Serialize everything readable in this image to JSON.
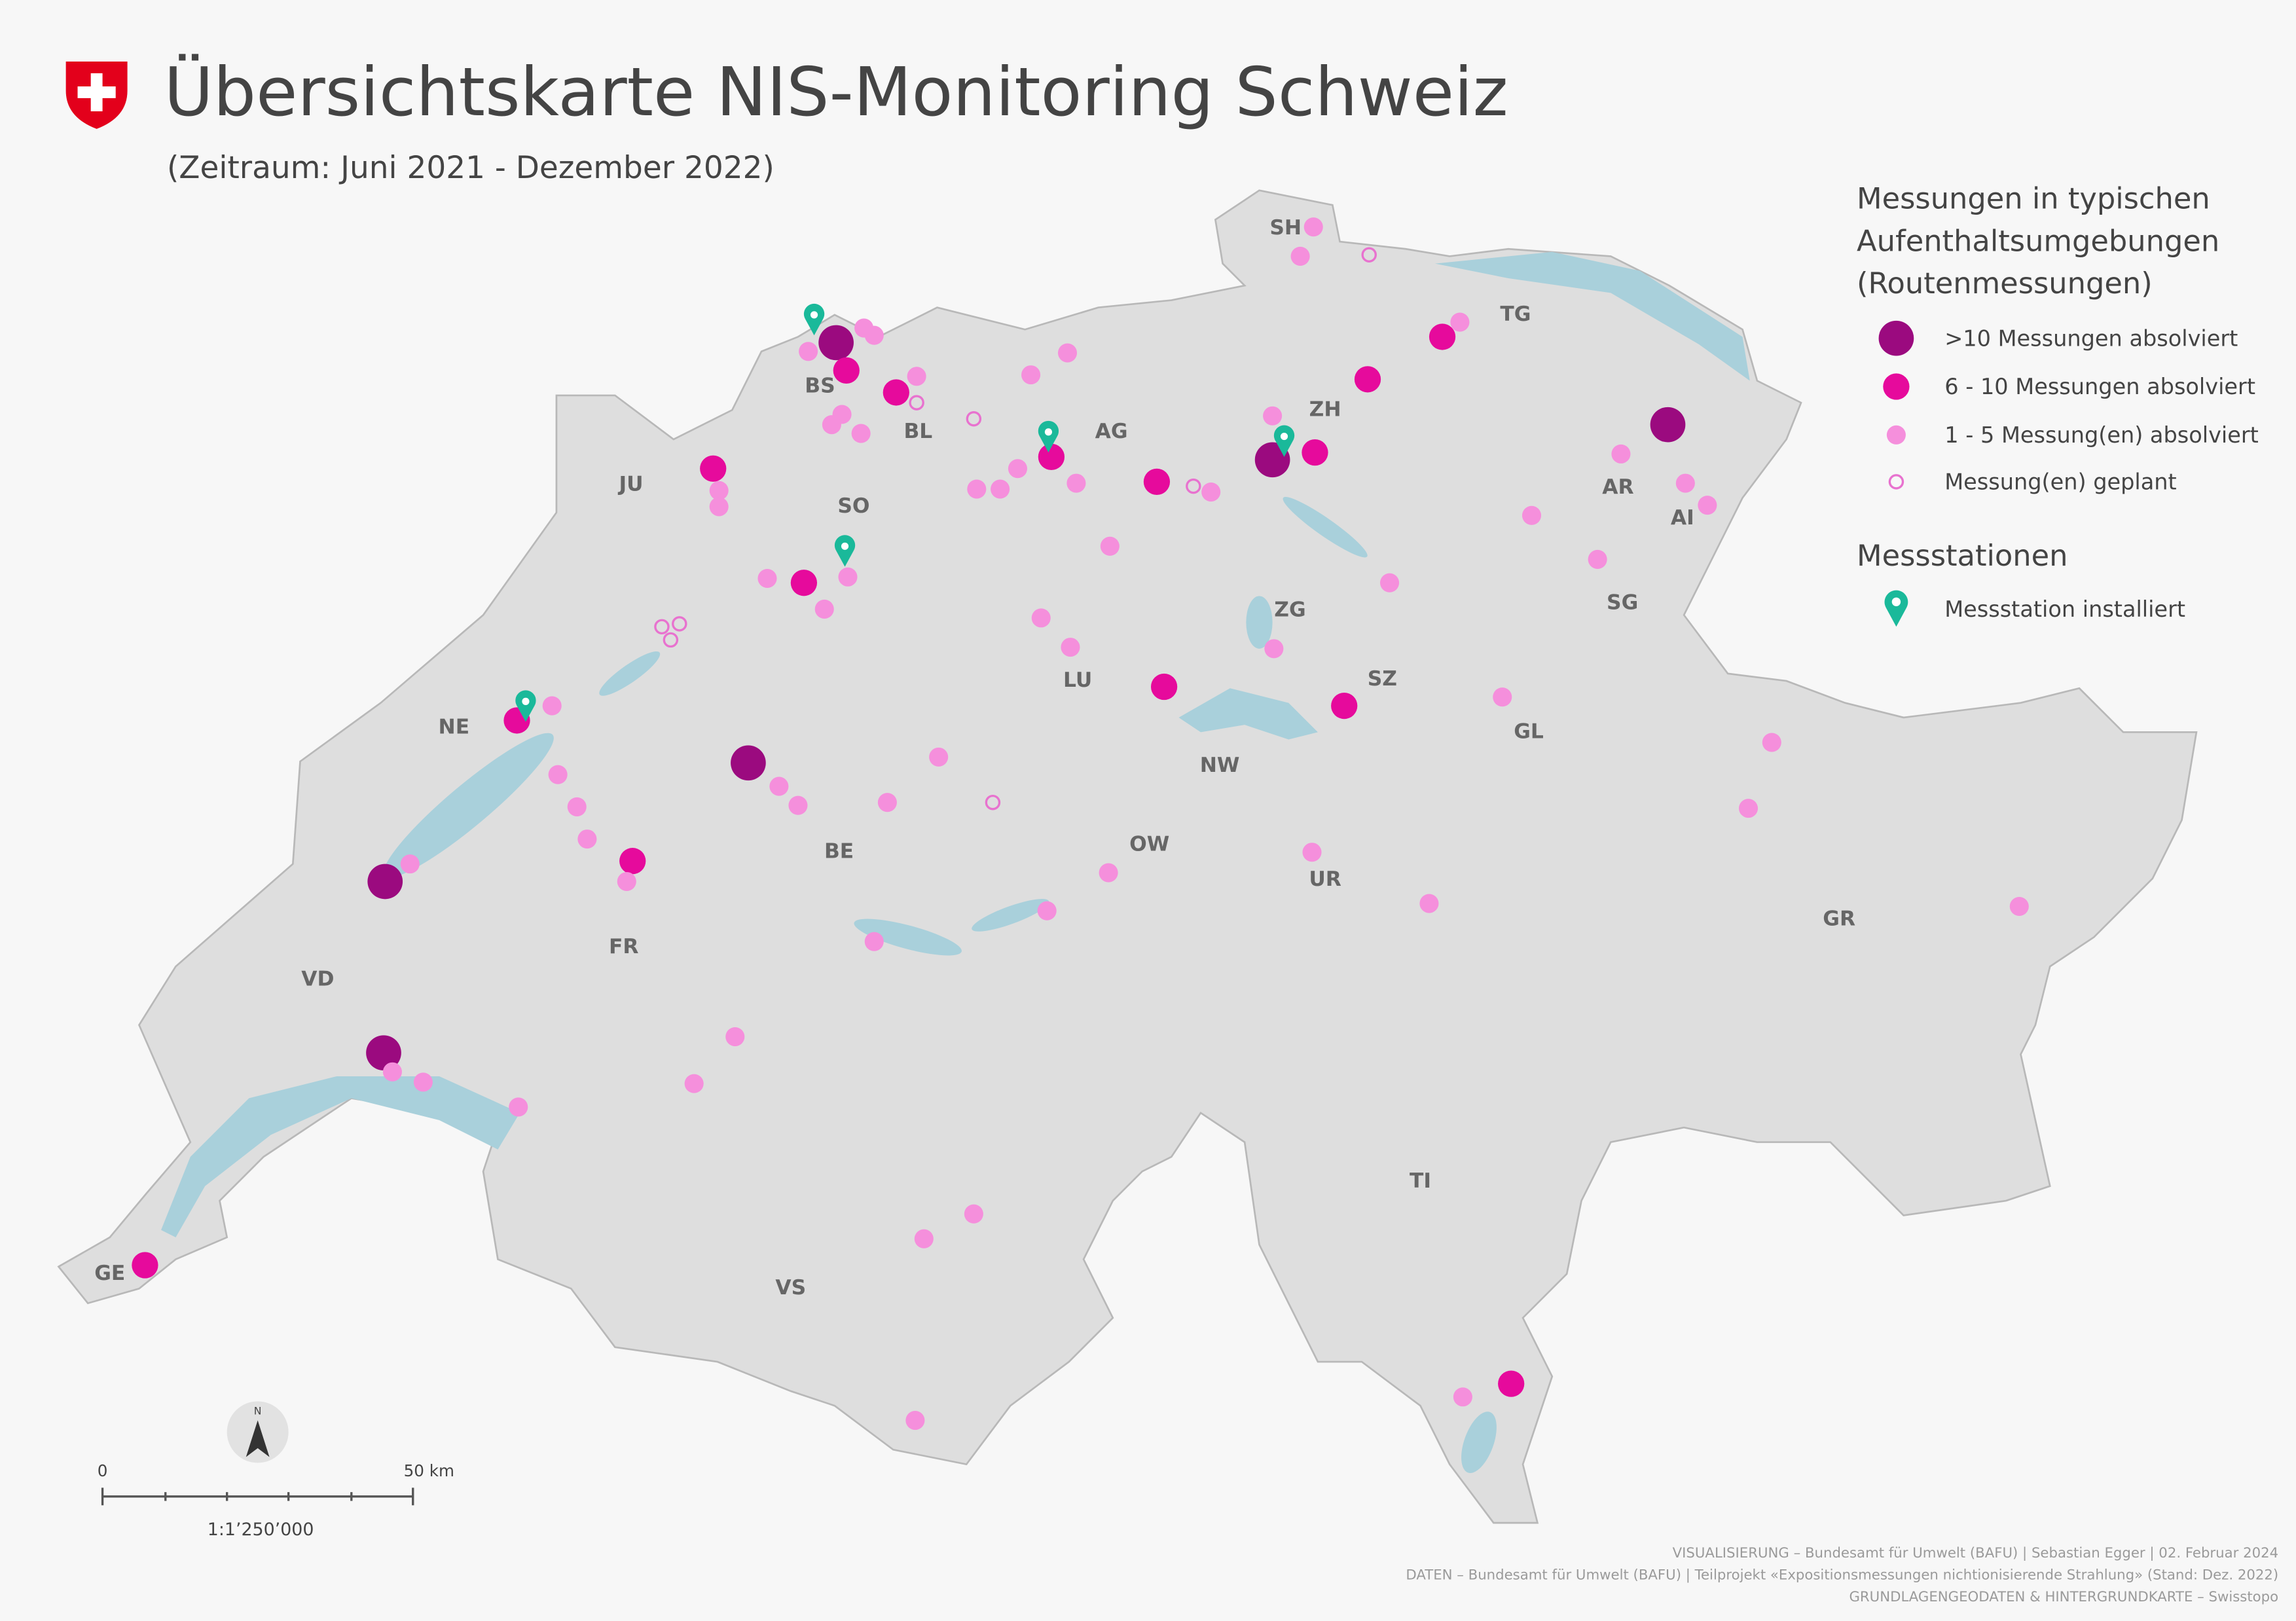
{
  "header": {
    "title": "Übersichtskarte NIS-Monitoring Schweiz",
    "subtitle": "(Zeitraum: Juni 2021 - Dezember 2022)"
  },
  "legend": {
    "routes_title": [
      "Messungen in typischen",
      "Aufenthaltsumgebungen",
      "(Routenmessungen)"
    ],
    "routes_items": [
      ">10 Messungen absolviert",
      "6 - 10 Messungen absolviert",
      "1 - 5 Messung(en) absolviert",
      "Messung(en) geplant"
    ],
    "stations_title": "Messstationen",
    "stations_items": [
      "Messstation installiert"
    ]
  },
  "cantons": [
    "SH",
    "TG",
    "BS",
    "BL",
    "AG",
    "ZH",
    "JU",
    "SO",
    "AR",
    "AI",
    "SG",
    "ZG",
    "LU",
    "SZ",
    "NE",
    "GL",
    "NW",
    "BE",
    "OW",
    "UR",
    "GR",
    "VD",
    "FR",
    "TI",
    "GE",
    "VS"
  ],
  "north": "N",
  "scale": {
    "start": "0",
    "end": "50 km",
    "ratio": "1:1’250’000"
  },
  "credits": [
    "VISUALISIERUNG – Bundesamt für Umwelt (BAFU) | Sebastian Egger | 02. Februar 2024",
    "DATEN – Bundesamt für Umwelt (BAFU)  | Teilprojekt «Expositionsmessungen nichtionisierende Strahlung» (Stand: Dez. 2022)",
    "GRUNDLAGENGEODATEN & HINTERGRUNDKARTE – Swisstopo"
  ]
}
